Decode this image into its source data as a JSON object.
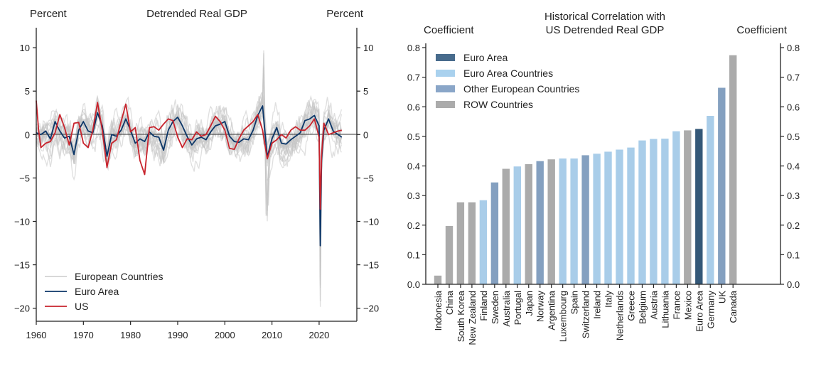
{
  "chart_data": [
    {
      "type": "line",
      "title": "Detrended Real GDP",
      "ylabel_left": "Percent",
      "ylabel_right": "Percent",
      "xlim": [
        1960,
        2028
      ],
      "ylim": [
        -21.5,
        12.3
      ],
      "xticks": [
        1960,
        1970,
        1980,
        1990,
        2000,
        2010,
        2020
      ],
      "yticks": [
        10,
        5,
        0,
        -5,
        -10,
        -15,
        -20
      ],
      "ytick_labels": [
        "10",
        "5",
        "0",
        "−5",
        "−10",
        "−15",
        "−20"
      ],
      "xtick_labels": [
        "1960",
        "1970",
        "1980",
        "1990",
        "2000",
        "2010",
        "2020"
      ],
      "grid": false,
      "zero_line": true,
      "legend": {
        "position": "bottom-left",
        "entries": [
          {
            "label": "European Countries",
            "color": "#d3d3d3"
          },
          {
            "label": "Euro Area",
            "color": "#0b3668"
          },
          {
            "label": "US",
            "color": "#c8232c"
          }
        ]
      },
      "series": [
        {
          "name": "US",
          "color": "#c8232c",
          "x": [
            1960,
            1960.5,
            1961,
            1962,
            1963,
            1964,
            1965,
            1966,
            1967,
            1968,
            1969,
            1970,
            1971,
            1972,
            1973,
            1974,
            1975,
            1976,
            1977,
            1978,
            1979,
            1980,
            1981,
            1982,
            1983,
            1984,
            1985,
            1986,
            1987,
            1988,
            1989,
            1990,
            1991,
            1992,
            1993,
            1994,
            1995,
            1996,
            1997,
            1998,
            1999,
            2000,
            2001,
            2002,
            2003,
            2004,
            2005,
            2006,
            2007,
            2008,
            2009,
            2010,
            2011,
            2012,
            2013,
            2014,
            2015,
            2016,
            2017,
            2018,
            2019,
            2020,
            2020.25,
            2020.5,
            2021,
            2022,
            2023,
            2024,
            2024.8
          ],
          "y": [
            3.9,
            0.5,
            -1.5,
            -1.0,
            -0.8,
            0.2,
            2.3,
            0.8,
            -1.2,
            1.3,
            1.4,
            -1.0,
            -1.5,
            0.5,
            3.7,
            0.5,
            -3.8,
            -1.0,
            -0.6,
            1.5,
            3.5,
            0.3,
            0.8,
            -3.0,
            -4.6,
            0.8,
            0.9,
            0.5,
            1.2,
            1.8,
            1.6,
            -0.3,
            -1.5,
            -0.5,
            -0.6,
            0.3,
            -0.2,
            0.0,
            1.0,
            2.1,
            1.5,
            0.5,
            -1.6,
            -1.7,
            -0.5,
            0.5,
            1.0,
            1.5,
            2.3,
            0.5,
            -2.8,
            -1.0,
            -0.6,
            0.0,
            -0.4,
            0.5,
            0.9,
            0.5,
            0.5,
            1.0,
            1.8,
            -0.3,
            -8.6,
            -2.5,
            1.3,
            0.0,
            0.2,
            0.4,
            0.5
          ]
        },
        {
          "name": "Euro Area",
          "color": "#0b3668",
          "x": [
            1960,
            1961,
            1962,
            1963,
            1964,
            1965,
            1966,
            1967,
            1968,
            1969,
            1970,
            1971,
            1972,
            1973,
            1974,
            1975,
            1976,
            1977,
            1978,
            1979,
            1980,
            1981,
            1982,
            1983,
            1984,
            1985,
            1986,
            1987,
            1988,
            1989,
            1990,
            1991,
            1992,
            1993,
            1994,
            1995,
            1996,
            1997,
            1998,
            1999,
            2000,
            2001,
            2002,
            2003,
            2004,
            2005,
            2006,
            2007,
            2008,
            2009,
            2010,
            2011,
            2012,
            2013,
            2014,
            2015,
            2016,
            2017,
            2018,
            2019,
            2020,
            2020.25,
            2020.5,
            2021,
            2022,
            2023,
            2024,
            2024.8
          ],
          "y": [
            0.2,
            0.0,
            0.4,
            -0.5,
            1.5,
            0.4,
            -0.4,
            -0.2,
            -2.3,
            0.5,
            1.5,
            0.4,
            0.2,
            2.5,
            1.0,
            -2.5,
            0.0,
            -0.2,
            0.5,
            1.8,
            0.5,
            -1.0,
            -0.5,
            -0.8,
            0.3,
            -0.2,
            -0.3,
            -1.8,
            0.5,
            1.5,
            2.0,
            1.0,
            -0.2,
            -1.2,
            -0.5,
            -0.3,
            -0.6,
            0.3,
            1.0,
            1.2,
            1.5,
            -0.2,
            -0.8,
            -0.9,
            -0.5,
            -0.6,
            0.5,
            2.2,
            3.3,
            -2.6,
            -0.5,
            0.8,
            -1.0,
            -1.1,
            -0.6,
            -0.2,
            0.2,
            1.6,
            1.8,
            2.2,
            1.0,
            -12.8,
            -3.0,
            0.5,
            1.8,
            0.4,
            0.0,
            -0.3
          ]
        }
      ],
      "background_series": {
        "name": "European Countries",
        "color": "#d3d3d3",
        "count_note": "many thin light-gray country lines spanning roughly -20 to 10.7"
      }
    },
    {
      "type": "bar",
      "title": "Historical Correlation with\nUS Detrended Real GDP",
      "title_lines": [
        "Historical Correlation with",
        "US Detrended Real GDP"
      ],
      "ylabel_left": "Coefficient",
      "ylabel_right": "Coefficient",
      "ylim": [
        0.0,
        0.8
      ],
      "yticks": [
        0.0,
        0.1,
        0.2,
        0.3,
        0.4,
        0.5,
        0.6,
        0.7,
        0.8
      ],
      "ytick_labels": [
        "0.0",
        "0.1",
        "0.2",
        "0.3",
        "0.4",
        "0.5",
        "0.6",
        "0.7",
        "0.8"
      ],
      "grid": false,
      "legend": {
        "position": "top-left",
        "entries": [
          {
            "label": "Euro Area",
            "group": "ea",
            "color": "#476b8c"
          },
          {
            "label": "Euro Area Countries",
            "group": "eac",
            "color": "#a9d1ee"
          },
          {
            "label": "Other European Countries",
            "group": "oec",
            "color": "#8aa6c8"
          },
          {
            "label": "ROW Countries",
            "group": "row",
            "color": "#ababab"
          }
        ]
      },
      "group_colors": {
        "ea": "#345878",
        "eac": "#a9cde9",
        "oec": "#84a0c0",
        "row": "#ababab"
      },
      "categories": [
        "Indonesia",
        "China",
        "South Korea",
        "New Zealand",
        "Finland",
        "Sweden",
        "Australia",
        "Portugal",
        "Japan",
        "Norway",
        "Argentina",
        "Luxembourg",
        "Spain",
        "Switzerland",
        "Ireland",
        "Italy",
        "Netherlands",
        "Greece",
        "Belgium",
        "Austria",
        "Lithuania",
        "France",
        "Mexico",
        "Euro Area",
        "Germany",
        "UK",
        "Canada"
      ],
      "groups": [
        "row",
        "row",
        "row",
        "row",
        "eac",
        "oec",
        "row",
        "eac",
        "row",
        "oec",
        "row",
        "eac",
        "eac",
        "oec",
        "eac",
        "eac",
        "eac",
        "eac",
        "eac",
        "eac",
        "eac",
        "eac",
        "row",
        "ea",
        "eac",
        "oec",
        "row"
      ],
      "values": [
        0.03,
        0.198,
        0.278,
        0.278,
        0.285,
        0.345,
        0.391,
        0.399,
        0.407,
        0.417,
        0.423,
        0.426,
        0.426,
        0.437,
        0.442,
        0.449,
        0.456,
        0.463,
        0.487,
        0.492,
        0.493,
        0.518,
        0.521,
        0.526,
        0.57,
        0.665,
        0.775
      ]
    }
  ]
}
